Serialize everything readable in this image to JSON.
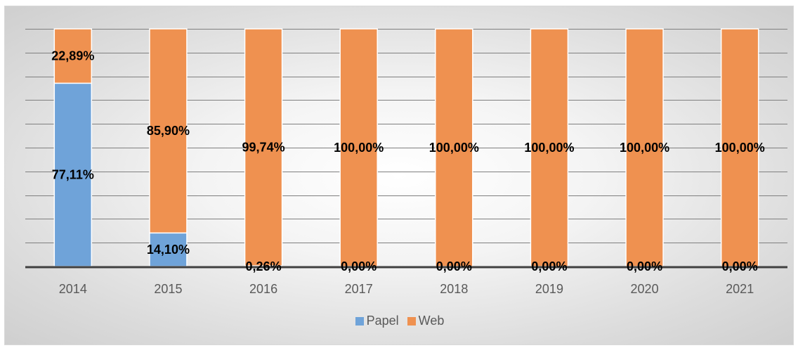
{
  "chart_data": {
    "type": "bar",
    "stacked": true,
    "normalized": true,
    "title": "",
    "xlabel": "",
    "ylabel": "",
    "ylim": [
      0,
      100
    ],
    "grid": true,
    "legend_position": "bottom",
    "categories": [
      "2014",
      "2015",
      "2016",
      "2017",
      "2018",
      "2019",
      "2020",
      "2021"
    ],
    "series": [
      {
        "name": "Papel",
        "color": "#6fa3d9",
        "values": [
          77.11,
          14.1,
          0.26,
          0.0,
          0.0,
          0.0,
          0.0,
          0.0
        ],
        "labels": [
          "77,11%",
          "14,10%",
          "0,26%",
          "0,00%",
          "0,00%",
          "0,00%",
          "0,00%",
          "0,00%"
        ]
      },
      {
        "name": "Web",
        "color": "#ef9150",
        "values": [
          22.89,
          85.9,
          99.74,
          100.0,
          100.0,
          100.0,
          100.0,
          100.0
        ],
        "labels": [
          "22,89%",
          "85,90%",
          "99,74%",
          "100,00%",
          "100,00%",
          "100,00%",
          "100,00%",
          "100,00%"
        ]
      }
    ]
  }
}
